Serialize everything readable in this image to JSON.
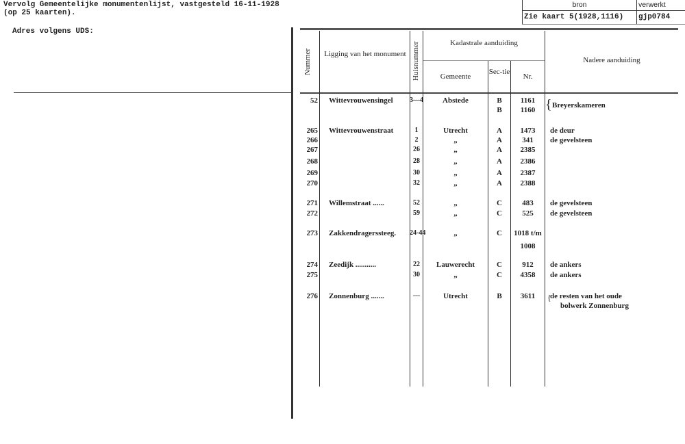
{
  "header": {
    "line1": "Vervolg Gemeentelijke monumentenlijst, vastgesteld 16-11-1928",
    "line2": "(op 25 kaarten).",
    "address_label": "Adres volgens UDS:"
  },
  "source_box": {
    "col_bron": "bron",
    "col_verwerkt": "verwerkt",
    "bron_value": "Zie kaart 5(1928,1116)",
    "verwerkt_value": "gjp0784"
  },
  "table": {
    "headers": {
      "nummer": "Nummer",
      "ligging": "Ligging van het monument",
      "huisnummer": "Huisnummer",
      "kadastrale": "Kadastrale aanduiding",
      "gemeente": "Gemeente",
      "sectie": "Sec-tie",
      "nr": "Nr.",
      "nadere": "Nadere aanduiding"
    },
    "rows": [
      {
        "nummer": "52",
        "ligging": "Wittevrouwensingel",
        "huisnummer": "3—4",
        "gemeente": "Abstede",
        "sectie": "B",
        "nr": "1161",
        "nadere": "Breyerskameren"
      },
      {
        "nummer": "",
        "ligging": "",
        "huisnummer": "",
        "gemeente": "",
        "sectie": "B",
        "nr": "1160",
        "nadere": ""
      },
      {
        "nummer": "265",
        "ligging": "Wittevrouwenstraat",
        "huisnummer": "1",
        "gemeente": "Utrecht",
        "sectie": "A",
        "nr": "1473",
        "nadere": "de deur"
      },
      {
        "nummer": "266",
        "ligging": "",
        "huisnummer": "2",
        "gemeente": "„",
        "sectie": "A",
        "nr": "341",
        "nadere": "de gevelsteen"
      },
      {
        "nummer": "267",
        "ligging": "",
        "huisnummer": "26",
        "gemeente": "„",
        "sectie": "A",
        "nr": "2385",
        "nadere": ""
      },
      {
        "nummer": "268",
        "ligging": "",
        "huisnummer": "28",
        "gemeente": "„",
        "sectie": "A",
        "nr": "2386",
        "nadere": ""
      },
      {
        "nummer": "269",
        "ligging": "",
        "huisnummer": "30",
        "gemeente": "„",
        "sectie": "A",
        "nr": "2387",
        "nadere": ""
      },
      {
        "nummer": "270",
        "ligging": "",
        "huisnummer": "32",
        "gemeente": "„",
        "sectie": "A",
        "nr": "2388",
        "nadere": ""
      },
      {
        "nummer": "271",
        "ligging": "Willemstraat ......",
        "huisnummer": "52",
        "gemeente": "„",
        "sectie": "C",
        "nr": "483",
        "nadere": "de gevelsteen"
      },
      {
        "nummer": "272",
        "ligging": "",
        "huisnummer": "59",
        "gemeente": "„",
        "sectie": "C",
        "nr": "525",
        "nadere": "de gevelsteen"
      },
      {
        "nummer": "273",
        "ligging": "Zakkendragerssteeg.",
        "huisnummer": "24-44",
        "gemeente": "„",
        "sectie": "C",
        "nr": "1018 t/m",
        "nadere": ""
      },
      {
        "nummer": "",
        "ligging": "",
        "huisnummer": "",
        "gemeente": "",
        "sectie": "",
        "nr": "1008",
        "nadere": ""
      },
      {
        "nummer": "274",
        "ligging": "Zeedijk ...........",
        "huisnummer": "22",
        "gemeente": "Lauwerecht",
        "sectie": "C",
        "nr": "912",
        "nadere": "de ankers"
      },
      {
        "nummer": "275",
        "ligging": "",
        "huisnummer": "30",
        "gemeente": "„",
        "sectie": "C",
        "nr": "4358",
        "nadere": "de ankers"
      },
      {
        "nummer": "276",
        "ligging": "Zonnenburg .......",
        "huisnummer": "—",
        "gemeente": "Utrecht",
        "sectie": "B",
        "nr": "3611",
        "nadere": "de resten van het oude"
      },
      {
        "nummer": "",
        "ligging": "",
        "huisnummer": "",
        "gemeente": "",
        "sectie": "",
        "nr": "",
        "nadere": "bolwerk Zonnenburg"
      }
    ]
  }
}
